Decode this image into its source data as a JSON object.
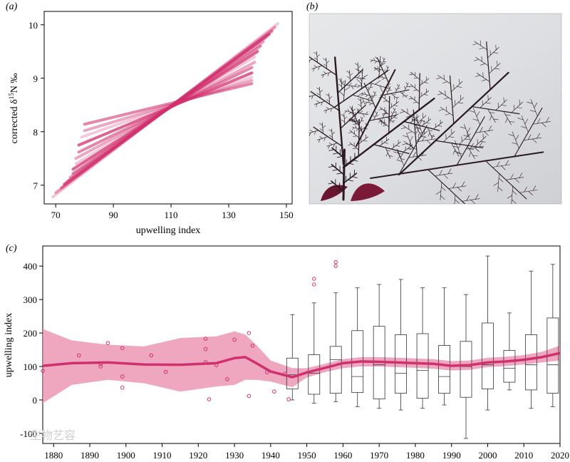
{
  "panels": {
    "a_label": "(a)",
    "b_label": "(b)",
    "c_label": "(c)"
  },
  "photo": {
    "description_icon": "seaweed-specimen-photo"
  },
  "watermark": "生物艺容",
  "chart_data": [
    {
      "id": "a",
      "type": "line",
      "xlabel": "upwelling index",
      "ylabel_main": "corrected δ",
      "ylabel_sup": "15",
      "ylabel_end": "N ‰",
      "xlim": [
        66,
        152
      ],
      "ylim": [
        6.65,
        10.25
      ],
      "xticks": [
        70,
        90,
        110,
        130,
        150
      ],
      "yticks": [
        7,
        8,
        9,
        10
      ],
      "pivot": {
        "x": 114,
        "y": 8.68
      },
      "color": "#d1306e",
      "lines": [
        {
          "x0": 69,
          "y0": 6.78,
          "x1": 147,
          "y1": 10.02
        },
        {
          "x0": 70,
          "y0": 6.86,
          "x1": 146,
          "y1": 9.95
        },
        {
          "x0": 72,
          "y0": 6.95,
          "x1": 145,
          "y1": 9.88
        },
        {
          "x0": 73,
          "y0": 7.02,
          "x1": 144,
          "y1": 9.82
        },
        {
          "x0": 74,
          "y0": 7.08,
          "x1": 143,
          "y1": 9.76
        },
        {
          "x0": 75,
          "y0": 7.15,
          "x1": 142,
          "y1": 9.68
        },
        {
          "x0": 76,
          "y0": 7.22,
          "x1": 141,
          "y1": 9.6
        },
        {
          "x0": 76,
          "y0": 7.3,
          "x1": 140,
          "y1": 9.5
        },
        {
          "x0": 77,
          "y0": 7.4,
          "x1": 139,
          "y1": 9.4
        },
        {
          "x0": 77,
          "y0": 7.5,
          "x1": 139,
          "y1": 9.3
        },
        {
          "x0": 78,
          "y0": 7.62,
          "x1": 138,
          "y1": 9.2
        },
        {
          "x0": 78,
          "y0": 7.75,
          "x1": 138,
          "y1": 9.1
        },
        {
          "x0": 79,
          "y0": 7.9,
          "x1": 138,
          "y1": 9.02
        },
        {
          "x0": 80,
          "y0": 8.02,
          "x1": 138,
          "y1": 8.96
        },
        {
          "x0": 80,
          "y0": 8.14,
          "x1": 138,
          "y1": 8.9
        }
      ]
    },
    {
      "id": "c",
      "type": "boxplot",
      "xlabel": "",
      "ylabel": "upwelling index",
      "xlim": [
        1877,
        2020
      ],
      "ylim": [
        -130,
        460
      ],
      "xticks": [
        1880,
        1890,
        1900,
        1910,
        1920,
        1930,
        1940,
        1950,
        1960,
        1970,
        1980,
        1990,
        2000,
        2010,
        2020
      ],
      "yticks": [
        -100,
        0,
        100,
        200,
        300,
        400
      ],
      "color": "#d1306e",
      "band_color": "#e88aa8",
      "points": [
        {
          "x": 1877,
          "y": 87
        },
        {
          "x": 1887,
          "y": 133
        },
        {
          "x": 1893,
          "y": 100
        },
        {
          "x": 1893,
          "y": 108
        },
        {
          "x": 1895,
          "y": 170
        },
        {
          "x": 1899,
          "y": 155
        },
        {
          "x": 1899,
          "y": 70
        },
        {
          "x": 1899,
          "y": 37
        },
        {
          "x": 1907,
          "y": 133
        },
        {
          "x": 1911,
          "y": 84
        },
        {
          "x": 1922,
          "y": 183
        },
        {
          "x": 1922,
          "y": 152
        },
        {
          "x": 1922,
          "y": 113
        },
        {
          "x": 1923,
          "y": 2
        },
        {
          "x": 1925,
          "y": 104
        },
        {
          "x": 1928,
          "y": 62
        },
        {
          "x": 1930,
          "y": 180
        },
        {
          "x": 1934,
          "y": 200
        },
        {
          "x": 1934,
          "y": 12
        },
        {
          "x": 1935,
          "y": 162
        },
        {
          "x": 1939,
          "y": 83
        },
        {
          "x": 1941,
          "y": 25
        },
        {
          "x": 1944,
          "y": 78
        },
        {
          "x": 1945,
          "y": 2
        }
      ],
      "smooth": {
        "x": [
          1877,
          1885,
          1895,
          1905,
          1915,
          1925,
          1930,
          1933,
          1936,
          1940,
          1946,
          1950,
          1955,
          1960,
          1965,
          1970,
          1975,
          1980,
          1985,
          1990,
          1995,
          2000,
          2005,
          2010,
          2015,
          2020
        ],
        "y": [
          102,
          110,
          112,
          106,
          105,
          110,
          125,
          128,
          110,
          85,
          68,
          82,
          96,
          110,
          115,
          114,
          112,
          110,
          108,
          102,
          104,
          112,
          115,
          120,
          128,
          140
        ],
        "lower": [
          -10,
          45,
          60,
          50,
          25,
          40,
          45,
          60,
          60,
          55,
          38,
          67,
          83,
          95,
          100,
          100,
          98,
          96,
          93,
          88,
          90,
          98,
          101,
          106,
          112,
          118
        ],
        "upper": [
          212,
          178,
          165,
          160,
          185,
          190,
          205,
          195,
          165,
          118,
          95,
          95,
          108,
          122,
          128,
          128,
          126,
          124,
          122,
          116,
          118,
          126,
          129,
          134,
          144,
          162
        ]
      },
      "boxes": [
        {
          "x": 1946,
          "min": 0,
          "q1": 33,
          "median": 75,
          "q3": 125,
          "max": 255,
          "outliers": []
        },
        {
          "x": 1952,
          "min": -10,
          "q1": 17,
          "median": 80,
          "q3": 135,
          "max": 290,
          "outliers": [
            345,
            362
          ]
        },
        {
          "x": 1958,
          "min": -5,
          "q1": 20,
          "median": 120,
          "q3": 160,
          "max": 320,
          "outliers": [
            400,
            412
          ]
        },
        {
          "x": 1964,
          "min": -20,
          "q1": 22,
          "median": 70,
          "q3": 207,
          "max": 335,
          "outliers": []
        },
        {
          "x": 1970,
          "min": -25,
          "q1": 3,
          "median": 105,
          "q3": 220,
          "max": 345,
          "outliers": []
        },
        {
          "x": 1976,
          "min": -30,
          "q1": 20,
          "median": 80,
          "q3": 195,
          "max": 360,
          "outliers": []
        },
        {
          "x": 1982,
          "min": -25,
          "q1": 5,
          "median": 88,
          "q3": 198,
          "max": 335,
          "outliers": []
        },
        {
          "x": 1988,
          "min": -15,
          "q1": 20,
          "median": 70,
          "q3": 163,
          "max": 335,
          "outliers": []
        },
        {
          "x": 1994,
          "min": -115,
          "q1": 8,
          "median": 100,
          "q3": 175,
          "max": 315,
          "outliers": []
        },
        {
          "x": 2000,
          "min": -30,
          "q1": 33,
          "median": 105,
          "q3": 230,
          "max": 430,
          "outliers": []
        },
        {
          "x": 2006,
          "min": 30,
          "q1": 53,
          "median": 95,
          "q3": 148,
          "max": 260,
          "outliers": []
        },
        {
          "x": 2012,
          "min": -25,
          "q1": 30,
          "median": 105,
          "q3": 195,
          "max": 385,
          "outliers": []
        },
        {
          "x": 2018,
          "min": -20,
          "q1": 20,
          "median": 105,
          "q3": 245,
          "max": 405,
          "outliers": []
        }
      ]
    }
  ]
}
